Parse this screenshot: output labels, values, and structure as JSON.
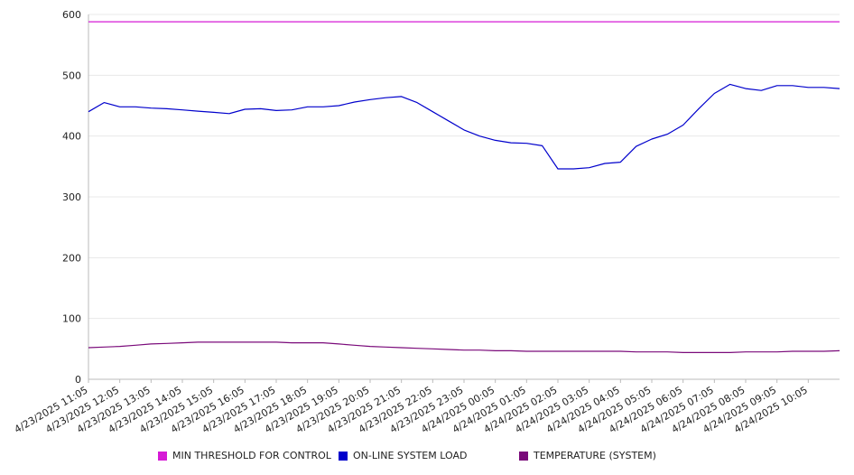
{
  "chart_data": {
    "type": "line",
    "title": "",
    "xlabel": "",
    "ylabel": "",
    "ylim": [
      0,
      600
    ],
    "y_ticks": [
      0,
      100,
      200,
      300,
      400,
      500,
      600
    ],
    "grid": "horizontal",
    "legend_position": "bottom",
    "x_tick_labels": [
      "4/23/2025 11:05",
      "4/23/2025 12:05",
      "4/23/2025 13:05",
      "4/23/2025 14:05",
      "4/23/2025 15:05",
      "4/23/2025 16:05",
      "4/23/2025 17:05",
      "4/23/2025 18:05",
      "4/23/2025 19:05",
      "4/23/2025 20:05",
      "4/23/2025 21:05",
      "4/23/2025 22:05",
      "4/23/2025 23:05",
      "4/24/2025 00:05",
      "4/24/2025 01:05",
      "4/24/2025 02:05",
      "4/24/2025 03:05",
      "4/24/2025 04:05",
      "4/24/2025 05:05",
      "4/24/2025 06:05",
      "4/24/2025 07:05",
      "4/24/2025 08:05",
      "4/24/2025 09:05",
      "4/24/2025 10:05"
    ],
    "x_points": [
      "4/23/2025 11:05",
      "4/23/2025 11:35",
      "4/23/2025 12:05",
      "4/23/2025 12:35",
      "4/23/2025 13:05",
      "4/23/2025 13:35",
      "4/23/2025 14:05",
      "4/23/2025 14:35",
      "4/23/2025 15:05",
      "4/23/2025 15:35",
      "4/23/2025 16:05",
      "4/23/2025 16:35",
      "4/23/2025 17:05",
      "4/23/2025 17:35",
      "4/23/2025 18:05",
      "4/23/2025 18:35",
      "4/23/2025 19:05",
      "4/23/2025 19:35",
      "4/23/2025 20:05",
      "4/23/2025 20:35",
      "4/23/2025 21:05",
      "4/23/2025 21:35",
      "4/23/2025 22:05",
      "4/23/2025 22:35",
      "4/23/2025 23:05",
      "4/23/2025 23:35",
      "4/24/2025 00:05",
      "4/24/2025 00:35",
      "4/24/2025 01:05",
      "4/24/2025 01:35",
      "4/24/2025 02:05",
      "4/24/2025 02:35",
      "4/24/2025 03:05",
      "4/24/2025 03:35",
      "4/24/2025 04:05",
      "4/24/2025 04:35",
      "4/24/2025 05:05",
      "4/24/2025 05:35",
      "4/24/2025 06:05",
      "4/24/2025 06:35",
      "4/24/2025 07:05",
      "4/24/2025 07:35",
      "4/24/2025 08:05",
      "4/24/2025 08:35",
      "4/24/2025 09:05",
      "4/24/2025 09:35",
      "4/24/2025 10:05",
      "4/24/2025 10:35",
      "4/24/2025 11:05"
    ],
    "series": [
      {
        "name": "MIN THRESHOLD FOR CONTROL",
        "color": "#d61ad6",
        "values": [
          588,
          588,
          588,
          588,
          588,
          588,
          588,
          588,
          588,
          588,
          588,
          588,
          588,
          588,
          588,
          588,
          588,
          588,
          588,
          588,
          588,
          588,
          588,
          588,
          588,
          588,
          588,
          588,
          588,
          588,
          588,
          588,
          588,
          588,
          588,
          588,
          588,
          588,
          588,
          588,
          588,
          588,
          588,
          588,
          588,
          588,
          588,
          588,
          588
        ]
      },
      {
        "name": "ON-LINE SYSTEM LOAD",
        "color": "#0000cc",
        "values": [
          440,
          455,
          448,
          448,
          446,
          445,
          443,
          441,
          439,
          437,
          444,
          445,
          442,
          443,
          448,
          448,
          450,
          456,
          460,
          463,
          465,
          455,
          440,
          425,
          410,
          400,
          393,
          389,
          388,
          384,
          346,
          346,
          348,
          355,
          357,
          383,
          395,
          403,
          418,
          445,
          470,
          485,
          478,
          475,
          483,
          483,
          480,
          480,
          478
        ]
      },
      {
        "name": "TEMPERATURE (SYSTEM)",
        "color": "#7a0a7a",
        "values": [
          52,
          53,
          54,
          56,
          58,
          59,
          60,
          61,
          61,
          61,
          61,
          61,
          61,
          60,
          60,
          60,
          58,
          56,
          54,
          53,
          52,
          51,
          50,
          49,
          48,
          48,
          47,
          47,
          46,
          46,
          46,
          46,
          46,
          46,
          46,
          45,
          45,
          45,
          44,
          44,
          44,
          44,
          45,
          45,
          45,
          46,
          46,
          46,
          47
        ]
      }
    ]
  }
}
